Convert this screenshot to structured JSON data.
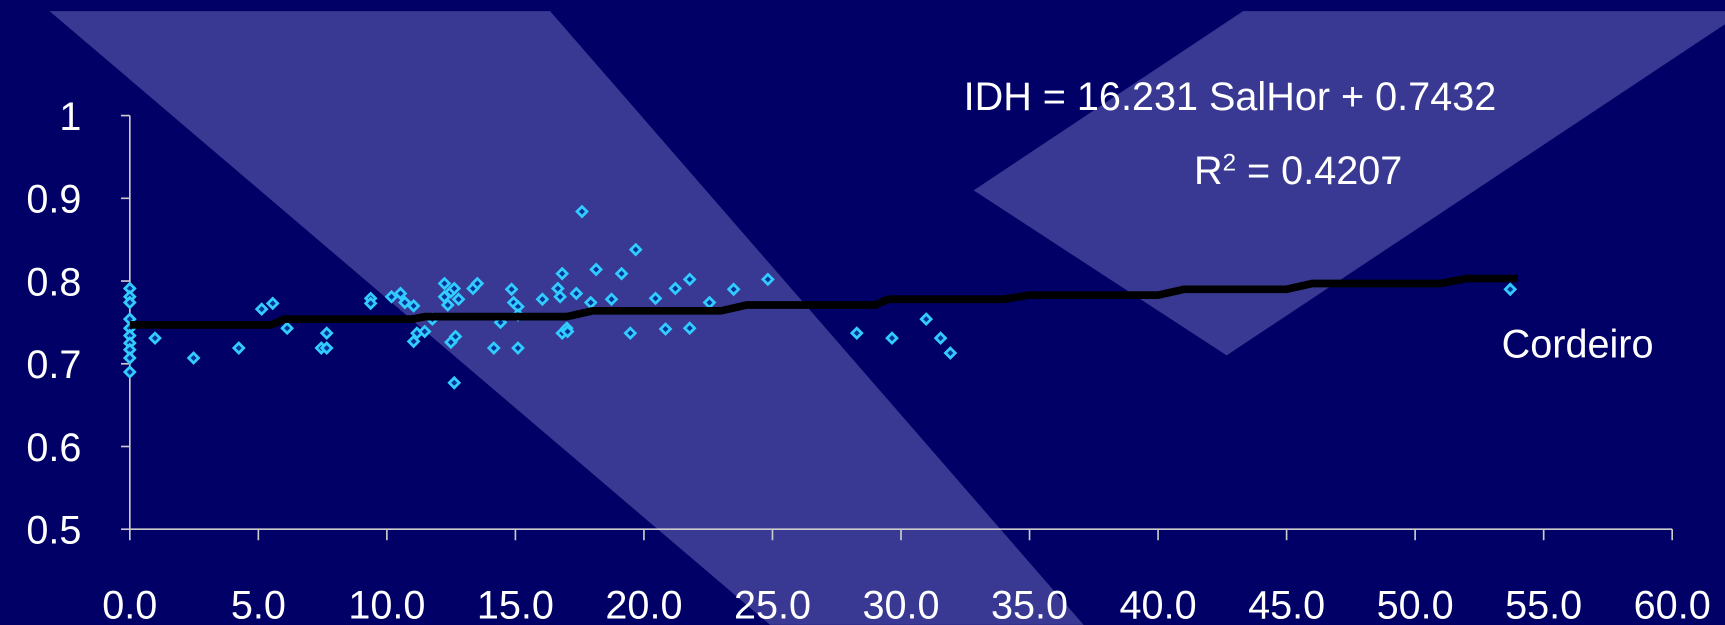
{
  "chart_data": {
    "type": "scatter",
    "annotations": [
      "IDH = 16.231 SalHor + 0.7432",
      "Cordeiro"
    ],
    "r_squared": {
      "symbol": "R",
      "exponent": "2",
      "text": " = 0.4207"
    },
    "xlim": [
      0,
      60
    ],
    "ylim": [
      0.5,
      1
    ],
    "xticks": [
      {
        "value": 0,
        "label": "0.0"
      },
      {
        "value": 5,
        "label": "5.0"
      },
      {
        "value": 10,
        "label": "10.0"
      },
      {
        "value": 15,
        "label": "15.0"
      },
      {
        "value": 20,
        "label": "20.0"
      },
      {
        "value": 25,
        "label": "25.0"
      },
      {
        "value": 30,
        "label": "30.0"
      },
      {
        "value": 35,
        "label": "35.0"
      },
      {
        "value": 40,
        "label": "40.0"
      },
      {
        "value": 45,
        "label": "45.0"
      },
      {
        "value": 50,
        "label": "50.0"
      },
      {
        "value": 55,
        "label": "55.0"
      },
      {
        "value": 60,
        "label": "60.0"
      }
    ],
    "yticks": [
      0.5,
      0.6,
      0.7,
      0.8,
      0.9,
      1
    ],
    "series": [
      {
        "color": "#33ccff",
        "x": [
          0,
          0,
          0,
          0,
          0,
          0,
          0,
          0,
          0,
          0,
          0.98,
          2.48,
          4.24,
          5.13,
          5.56,
          6.12,
          7.45,
          7.66,
          7.66,
          9.37,
          9.37,
          10.18,
          10.53,
          10.7,
          11.04,
          11.04,
          11.17,
          11.47,
          11.77,
          12.24,
          12.24,
          12.37,
          12.49,
          12.49,
          12.67,
          12.62,
          12.62,
          12.79,
          13.35,
          13.52,
          14.16,
          14.42,
          14.85,
          14.93,
          15.1,
          15.1,
          15.1,
          16.05,
          16.65,
          16.74,
          16.82,
          16.82,
          17.0,
          17.03,
          17.37,
          17.59,
          17.93,
          18.14,
          18.74,
          19.13,
          19.47,
          19.68,
          20.45,
          20.84,
          21.22,
          21.78,
          21.78,
          22.55,
          23.49,
          24.82,
          28.28,
          29.65,
          30.98,
          31.54,
          31.92,
          53.7
        ],
        "values": [
          0.791,
          0.781,
          0.774,
          0.754,
          0.743,
          0.734,
          0.725,
          0.717,
          0.707,
          0.69,
          0.731,
          0.707,
          0.719,
          0.766,
          0.773,
          0.743,
          0.719,
          0.737,
          0.719,
          0.779,
          0.773,
          0.781,
          0.785,
          0.774,
          0.77,
          0.727,
          0.737,
          0.739,
          0.754,
          0.797,
          0.781,
          0.771,
          0.787,
          0.726,
          0.733,
          0.791,
          0.677,
          0.778,
          0.791,
          0.797,
          0.719,
          0.75,
          0.79,
          0.774,
          0.719,
          0.769,
          0.759,
          0.778,
          0.791,
          0.781,
          0.809,
          0.737,
          0.743,
          0.739,
          0.785,
          0.884,
          0.774,
          0.814,
          0.778,
          0.809,
          0.737,
          0.838,
          0.779,
          0.742,
          0.791,
          0.802,
          0.743,
          0.774,
          0.79,
          0.802,
          0.737,
          0.731,
          0.754,
          0.731,
          0.713,
          0.79
        ]
      },
      {
        "type": "line",
        "color": "#000000",
        "x": [
          0,
          5.5,
          6,
          11,
          11.5,
          17,
          18,
          23,
          24,
          29,
          29.5,
          34,
          35,
          40,
          41,
          45,
          46,
          51,
          52,
          54
        ],
        "values": [
          0.747,
          0.747,
          0.754,
          0.754,
          0.757,
          0.757,
          0.764,
          0.764,
          0.771,
          0.771,
          0.778,
          0.778,
          0.783,
          0.783,
          0.79,
          0.79,
          0.797,
          0.797,
          0.803,
          0.803
        ]
      }
    ]
  }
}
